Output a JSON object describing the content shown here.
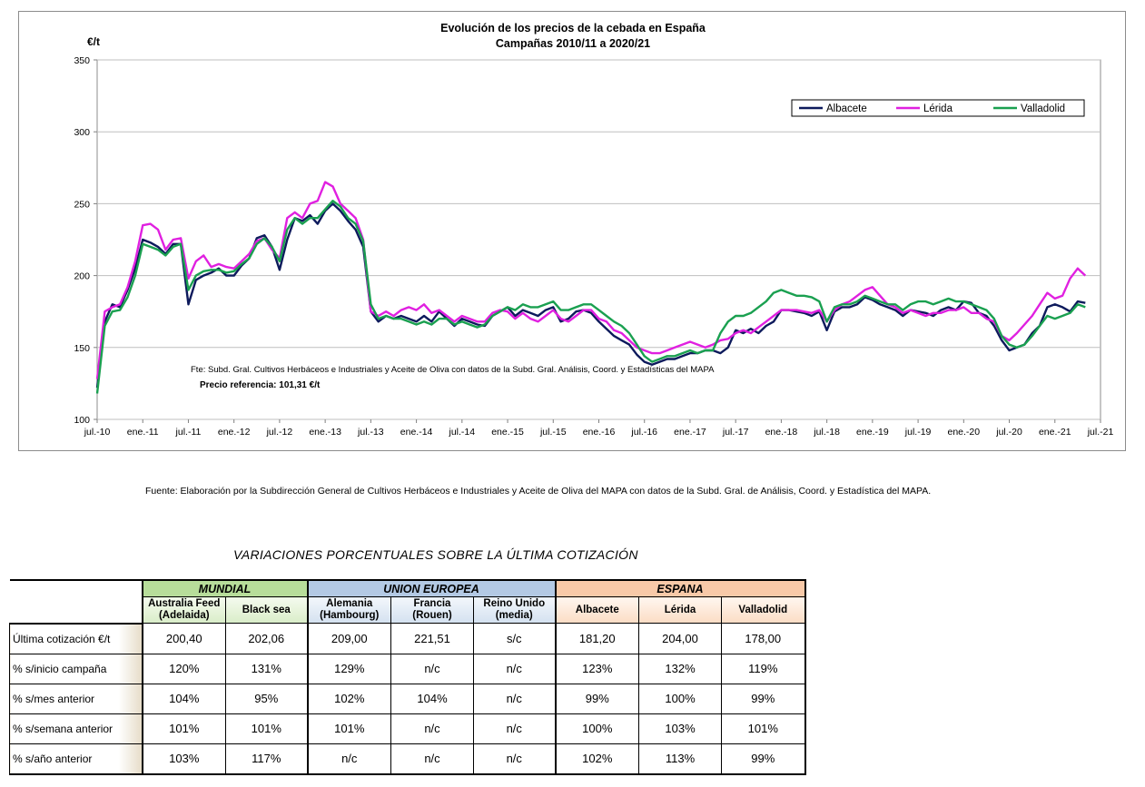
{
  "chart_data": {
    "type": "line",
    "title_line1": "Evolución de los precios de la cebada en España",
    "title_line2": "Campañas 2010/11 a 2020/21",
    "ylabel": "€/t",
    "ylim": [
      100,
      350
    ],
    "yticks": [
      "100",
      "150",
      "200",
      "250",
      "300",
      "350"
    ],
    "xticks": [
      "jul.-10",
      "ene.-11",
      "jul.-11",
      "ene.-12",
      "jul.-12",
      "ene.-13",
      "jul.-13",
      "ene.-14",
      "jul.-14",
      "ene.-15",
      "jul.-15",
      "ene.-16",
      "jul.-16",
      "ene.-17",
      "jul.-17",
      "ene.-18",
      "jul.-18",
      "ene.-19",
      "jul.-19",
      "ene.-20",
      "jul.-20",
      "ene.-21",
      "jul.-21"
    ],
    "grid": true,
    "legend_position": "top-right",
    "annotation_source": "Fte: Subd. Gral. Cultivos Herbáceos e Industriales y Aceite de Oliva con datos de la Subd. Gral. Análisis, Coord. y Estadísticas del MAPA",
    "annotation_reference": "Precio referencia: 101,31 €/t",
    "series": [
      {
        "name": "Albacete",
        "color": "#0d1a5c",
        "x": [
          "2010-07",
          "2010-08",
          "2010-09",
          "2010-10",
          "2010-11",
          "2010-12",
          "2011-01",
          "2011-02",
          "2011-03",
          "2011-04",
          "2011-05",
          "2011-06",
          "2011-07",
          "2011-08",
          "2011-09",
          "2011-10",
          "2011-11",
          "2011-12",
          "2012-01",
          "2012-02",
          "2012-03",
          "2012-04",
          "2012-05",
          "2012-06",
          "2012-07",
          "2012-08",
          "2012-09",
          "2012-10",
          "2012-11",
          "2012-12",
          "2013-01",
          "2013-02",
          "2013-03",
          "2013-04",
          "2013-05",
          "2013-06",
          "2013-07",
          "2013-08",
          "2013-09",
          "2013-10",
          "2013-11",
          "2013-12",
          "2014-01",
          "2014-02",
          "2014-03",
          "2014-04",
          "2014-05",
          "2014-06",
          "2014-07",
          "2014-08",
          "2014-09",
          "2014-10",
          "2014-11",
          "2014-12",
          "2015-01",
          "2015-02",
          "2015-03",
          "2015-04",
          "2015-05",
          "2015-06",
          "2015-07",
          "2015-08",
          "2015-09",
          "2015-10",
          "2015-11",
          "2015-12",
          "2016-01",
          "2016-02",
          "2016-03",
          "2016-04",
          "2016-05",
          "2016-06",
          "2016-07",
          "2016-08",
          "2016-09",
          "2016-10",
          "2016-11",
          "2016-12",
          "2017-01",
          "2017-02",
          "2017-03",
          "2017-04",
          "2017-05",
          "2017-06",
          "2017-07",
          "2017-08",
          "2017-09",
          "2017-10",
          "2017-11",
          "2017-12",
          "2018-01",
          "2018-02",
          "2018-03",
          "2018-04",
          "2018-05",
          "2018-06",
          "2018-07",
          "2018-08",
          "2018-09",
          "2018-10",
          "2018-11",
          "2018-12",
          "2019-01",
          "2019-02",
          "2019-03",
          "2019-04",
          "2019-05",
          "2019-06",
          "2019-07",
          "2019-08",
          "2019-09",
          "2019-10",
          "2019-11",
          "2019-12",
          "2020-01",
          "2020-02",
          "2020-03",
          "2020-04",
          "2020-05",
          "2020-06",
          "2020-07",
          "2020-08",
          "2020-09",
          "2020-10",
          "2020-11",
          "2020-12",
          "2021-01",
          "2021-02",
          "2021-03",
          "2021-04",
          "2021-05"
        ],
        "values": [
          122,
          168,
          180,
          178,
          190,
          205,
          225,
          223,
          220,
          215,
          222,
          222,
          180,
          197,
          200,
          202,
          205,
          200,
          200,
          207,
          212,
          226,
          228,
          220,
          204,
          225,
          240,
          238,
          242,
          236,
          245,
          250,
          245,
          238,
          232,
          220,
          175,
          168,
          172,
          170,
          172,
          170,
          168,
          172,
          168,
          175,
          170,
          165,
          170,
          168,
          166,
          165,
          172,
          175,
          178,
          172,
          176,
          174,
          172,
          176,
          178,
          168,
          170,
          175,
          176,
          174,
          168,
          163,
          158,
          155,
          152,
          145,
          140,
          138,
          140,
          142,
          142,
          144,
          146,
          146,
          148,
          148,
          146,
          150,
          162,
          160,
          163,
          160,
          165,
          168,
          176,
          176,
          175,
          174,
          172,
          175,
          162,
          175,
          178,
          178,
          180,
          185,
          183,
          180,
          178,
          176,
          172,
          176,
          175,
          174,
          172,
          176,
          178,
          176,
          182,
          181,
          174,
          172,
          165,
          155,
          148,
          150,
          152,
          160,
          165,
          178,
          180,
          178,
          175,
          182,
          181
        ]
      },
      {
        "name": "Lérida",
        "color": "#e020e0",
        "x": [
          "2010-07",
          "2010-08",
          "2010-09",
          "2010-10",
          "2010-11",
          "2010-12",
          "2011-01",
          "2011-02",
          "2011-03",
          "2011-04",
          "2011-05",
          "2011-06",
          "2011-07",
          "2011-08",
          "2011-09",
          "2011-10",
          "2011-11",
          "2011-12",
          "2012-01",
          "2012-02",
          "2012-03",
          "2012-04",
          "2012-05",
          "2012-06",
          "2012-07",
          "2012-08",
          "2012-09",
          "2012-10",
          "2012-11",
          "2012-12",
          "2013-01",
          "2013-02",
          "2013-03",
          "2013-04",
          "2013-05",
          "2013-06",
          "2013-07",
          "2013-08",
          "2013-09",
          "2013-10",
          "2013-11",
          "2013-12",
          "2014-01",
          "2014-02",
          "2014-03",
          "2014-04",
          "2014-05",
          "2014-06",
          "2014-07",
          "2014-08",
          "2014-09",
          "2014-10",
          "2014-11",
          "2014-12",
          "2015-01",
          "2015-02",
          "2015-03",
          "2015-04",
          "2015-05",
          "2015-06",
          "2015-07",
          "2015-08",
          "2015-09",
          "2015-10",
          "2015-11",
          "2015-12",
          "2016-01",
          "2016-02",
          "2016-03",
          "2016-04",
          "2016-05",
          "2016-06",
          "2016-07",
          "2016-08",
          "2016-09",
          "2016-10",
          "2016-11",
          "2016-12",
          "2017-01",
          "2017-02",
          "2017-03",
          "2017-04",
          "2017-05",
          "2017-06",
          "2017-07",
          "2017-08",
          "2017-09",
          "2017-10",
          "2017-11",
          "2017-12",
          "2018-01",
          "2018-02",
          "2018-03",
          "2018-04",
          "2018-05",
          "2018-06",
          "2018-07",
          "2018-08",
          "2018-09",
          "2018-10",
          "2018-11",
          "2018-12",
          "2019-01",
          "2019-02",
          "2019-03",
          "2019-04",
          "2019-05",
          "2019-06",
          "2019-07",
          "2019-08",
          "2019-09",
          "2019-10",
          "2019-11",
          "2019-12",
          "2020-01",
          "2020-02",
          "2020-03",
          "2020-04",
          "2020-05",
          "2020-06",
          "2020-07",
          "2020-08",
          "2020-09",
          "2020-10",
          "2020-11",
          "2020-12",
          "2021-01",
          "2021-02",
          "2021-03",
          "2021-04",
          "2021-05"
        ],
        "values": [
          128,
          175,
          178,
          180,
          192,
          210,
          235,
          236,
          232,
          218,
          225,
          226,
          198,
          210,
          214,
          206,
          208,
          206,
          205,
          210,
          215,
          224,
          226,
          218,
          212,
          240,
          244,
          240,
          250,
          252,
          265,
          262,
          250,
          245,
          240,
          225,
          175,
          172,
          175,
          172,
          176,
          178,
          176,
          180,
          174,
          176,
          172,
          168,
          172,
          170,
          168,
          168,
          174,
          176,
          175,
          170,
          174,
          170,
          168,
          172,
          176,
          170,
          168,
          172,
          176,
          176,
          170,
          168,
          162,
          160,
          155,
          150,
          148,
          146,
          146,
          148,
          150,
          152,
          154,
          152,
          150,
          152,
          155,
          156,
          160,
          162,
          160,
          164,
          168,
          172,
          176,
          176,
          176,
          175,
          174,
          176,
          168,
          176,
          180,
          182,
          186,
          190,
          192,
          186,
          180,
          178,
          174,
          176,
          174,
          172,
          174,
          174,
          176,
          176,
          178,
          174,
          174,
          170,
          168,
          158,
          155,
          160,
          166,
          172,
          180,
          188,
          184,
          186,
          198,
          205,
          200
        ]
      },
      {
        "name": "Valladolid",
        "color": "#1aa050",
        "x": [
          "2010-07",
          "2010-08",
          "2010-09",
          "2010-10",
          "2010-11",
          "2010-12",
          "2011-01",
          "2011-02",
          "2011-03",
          "2011-04",
          "2011-05",
          "2011-06",
          "2011-07",
          "2011-08",
          "2011-09",
          "2011-10",
          "2011-11",
          "2011-12",
          "2012-01",
          "2012-02",
          "2012-03",
          "2012-04",
          "2012-05",
          "2012-06",
          "2012-07",
          "2012-08",
          "2012-09",
          "2012-10",
          "2012-11",
          "2012-12",
          "2013-01",
          "2013-02",
          "2013-03",
          "2013-04",
          "2013-05",
          "2013-06",
          "2013-07",
          "2013-08",
          "2013-09",
          "2013-10",
          "2013-11",
          "2013-12",
          "2014-01",
          "2014-02",
          "2014-03",
          "2014-04",
          "2014-05",
          "2014-06",
          "2014-07",
          "2014-08",
          "2014-09",
          "2014-10",
          "2014-11",
          "2014-12",
          "2015-01",
          "2015-02",
          "2015-03",
          "2015-04",
          "2015-05",
          "2015-06",
          "2015-07",
          "2015-08",
          "2015-09",
          "2015-10",
          "2015-11",
          "2015-12",
          "2016-01",
          "2016-02",
          "2016-03",
          "2016-04",
          "2016-05",
          "2016-06",
          "2016-07",
          "2016-08",
          "2016-09",
          "2016-10",
          "2016-11",
          "2016-12",
          "2017-01",
          "2017-02",
          "2017-03",
          "2017-04",
          "2017-05",
          "2017-06",
          "2017-07",
          "2017-08",
          "2017-09",
          "2017-10",
          "2017-11",
          "2017-12",
          "2018-01",
          "2018-02",
          "2018-03",
          "2018-04",
          "2018-05",
          "2018-06",
          "2018-07",
          "2018-08",
          "2018-09",
          "2018-10",
          "2018-11",
          "2018-12",
          "2019-01",
          "2019-02",
          "2019-03",
          "2019-04",
          "2019-05",
          "2019-06",
          "2019-07",
          "2019-08",
          "2019-09",
          "2019-10",
          "2019-11",
          "2019-12",
          "2020-01",
          "2020-02",
          "2020-03",
          "2020-04",
          "2020-05",
          "2020-06",
          "2020-07",
          "2020-08",
          "2020-09",
          "2020-10",
          "2020-11",
          "2020-12",
          "2021-01",
          "2021-02",
          "2021-03",
          "2021-04",
          "2021-05"
        ],
        "values": [
          118,
          165,
          175,
          176,
          185,
          200,
          222,
          220,
          218,
          214,
          220,
          222,
          190,
          200,
          203,
          204,
          204,
          202,
          203,
          208,
          212,
          222,
          226,
          220,
          210,
          232,
          240,
          236,
          240,
          240,
          246,
          252,
          248,
          240,
          236,
          224,
          180,
          170,
          172,
          170,
          170,
          168,
          166,
          168,
          166,
          170,
          170,
          166,
          168,
          166,
          164,
          166,
          172,
          175,
          178,
          176,
          180,
          178,
          178,
          180,
          182,
          176,
          176,
          178,
          180,
          180,
          176,
          172,
          168,
          165,
          160,
          152,
          144,
          140,
          142,
          144,
          144,
          146,
          148,
          146,
          148,
          148,
          160,
          168,
          172,
          172,
          174,
          178,
          182,
          188,
          190,
          188,
          186,
          186,
          185,
          182,
          168,
          178,
          180,
          180,
          182,
          186,
          184,
          182,
          180,
          180,
          176,
          180,
          182,
          182,
          180,
          182,
          184,
          182,
          182,
          180,
          178,
          176,
          170,
          158,
          152,
          150,
          152,
          158,
          165,
          172,
          170,
          172,
          174,
          180,
          178
        ]
      }
    ]
  },
  "source_note": "Fuente: Elaboración por la Subdirección General de Cultivos Herbáceos e Industriales y Aceite de Oliva del MAPA con datos de la Subd. Gral. de Análisis, Coord. y Estadística del MAPA.",
  "table": {
    "title": "VARIACIONES PORCENTUALES SOBRE LA ÚLTIMA COTIZACIÓN",
    "groups": {
      "mundial": "MUNDIAL",
      "ue": "UNION EUROPEA",
      "espana": "ESPANA"
    },
    "columns": [
      {
        "l1": "Australia Feed",
        "l2": "(Adelaida)"
      },
      {
        "l1": "Black sea",
        "l2": ""
      },
      {
        "l1": "Alemania",
        "l2": "(Hambourg)"
      },
      {
        "l1": "Francia",
        "l2": "(Rouen)"
      },
      {
        "l1": "Reino Unido",
        "l2": "(media)"
      },
      {
        "l1": "Albacete",
        "l2": ""
      },
      {
        "l1": "Lérida",
        "l2": ""
      },
      {
        "l1": "Valladolid",
        "l2": ""
      }
    ],
    "rows": [
      {
        "label": "Última cotización €/t",
        "values": [
          "200,40",
          "202,06",
          "209,00",
          "221,51",
          "s/c",
          "181,20",
          "204,00",
          "178,00"
        ]
      },
      {
        "label": "% s/inicio campaña",
        "values": [
          "120%",
          "131%",
          "129%",
          "n/c",
          "n/c",
          "123%",
          "132%",
          "119%"
        ]
      },
      {
        "label": "% s/mes anterior",
        "values": [
          "104%",
          "95%",
          "102%",
          "104%",
          "n/c",
          "99%",
          "100%",
          "99%"
        ]
      },
      {
        "label": "% s/semana anterior",
        "values": [
          "101%",
          "101%",
          "101%",
          "n/c",
          "n/c",
          "100%",
          "103%",
          "101%"
        ]
      },
      {
        "label": "% s/año anterior",
        "values": [
          "103%",
          "117%",
          "n/c",
          "n/c",
          "n/c",
          "102%",
          "113%",
          "99%"
        ]
      }
    ]
  }
}
